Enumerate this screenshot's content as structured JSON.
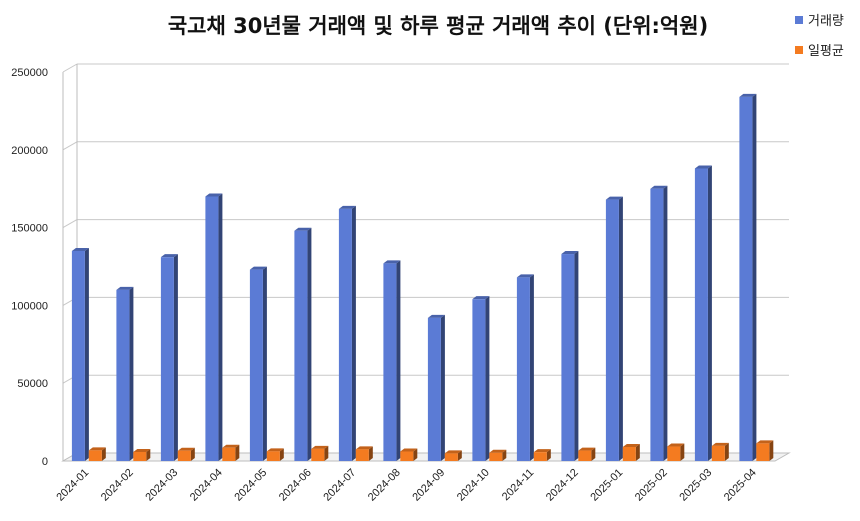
{
  "chart_data": {
    "type": "bar",
    "title": "국고채 30년물 거래액 및 하루 평균 거래액 추이 (단위:억원)",
    "categories": [
      "2024-01",
      "2024-02",
      "2024-03",
      "2024-04",
      "2024-05",
      "2024-06",
      "2024-07",
      "2024-08",
      "2024-09",
      "2024-10",
      "2024-11",
      "2024-12",
      "2025-01",
      "2025-02",
      "2025-03",
      "2025-04"
    ],
    "series": [
      {
        "name": "거래량",
        "color": "#5b7bd5",
        "values": [
          135000,
          110000,
          131000,
          170000,
          123000,
          148000,
          162000,
          127000,
          92000,
          104000,
          118000,
          133000,
          168000,
          175000,
          188000,
          234000
        ]
      },
      {
        "name": "일평균",
        "color": "#f47b20",
        "values": [
          6800,
          5800,
          6600,
          8500,
          6200,
          7800,
          7500,
          6100,
          4900,
          5300,
          5700,
          6700,
          9000,
          9300,
          9700,
          11300
        ]
      }
    ],
    "yticks": [
      "250000",
      "200000",
      "150000",
      "100000",
      "50000",
      "0"
    ],
    "ylim": [
      0,
      250000
    ],
    "grid": true,
    "legend": "top-right"
  }
}
